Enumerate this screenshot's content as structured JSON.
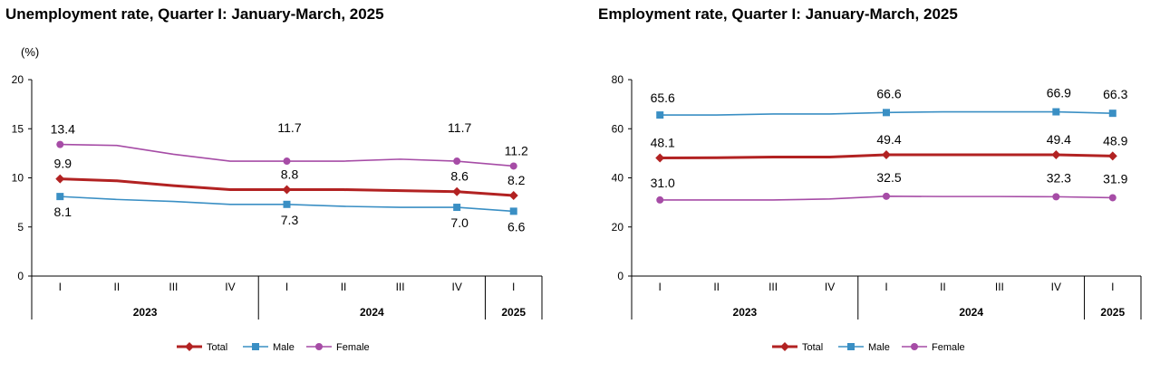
{
  "chart_data": [
    {
      "type": "line",
      "title": "Unemployment rate, Quarter I: January-March, 2025",
      "ylabel": "(%)",
      "ylim": [
        0,
        20
      ],
      "yticks": [
        0,
        5,
        10,
        15,
        20
      ],
      "categories": [
        "I",
        "II",
        "III",
        "IV",
        "I",
        "II",
        "III",
        "IV",
        "I"
      ],
      "years": [
        {
          "label": "2023",
          "span": 4
        },
        {
          "label": "2024",
          "span": 4
        },
        {
          "label": "2025",
          "span": 1
        }
      ],
      "series": [
        {
          "name": "Total",
          "color": "#B22222",
          "values": [
            9.9,
            9.7,
            9.2,
            8.8,
            8.8,
            8.8,
            8.7,
            8.6,
            8.2
          ],
          "labels": {
            "0": "9.9",
            "4": "8.8",
            "7": "8.6",
            "8": "8.2"
          }
        },
        {
          "name": "Male",
          "color": "#3A8FC4",
          "values": [
            8.1,
            7.8,
            7.6,
            7.3,
            7.3,
            7.1,
            7.0,
            7.0,
            6.6
          ],
          "labels": {
            "0": "8.1",
            "4": "7.3",
            "7": "7.0",
            "8": "6.6"
          }
        },
        {
          "name": "Female",
          "color": "#A64CA6",
          "values": [
            13.4,
            13.3,
            12.4,
            11.7,
            11.7,
            11.7,
            11.9,
            11.7,
            11.2
          ],
          "labels": {
            "0": "13.4",
            "4": "11.7",
            "7": "11.7",
            "8": "11.2"
          }
        }
      ],
      "legend": "bottom",
      "grid": false
    },
    {
      "type": "line",
      "title": "Employment rate, Quarter I: January-March, 2025",
      "ylabel": "",
      "ylim": [
        0,
        80
      ],
      "yticks": [
        0,
        20,
        40,
        60,
        80
      ],
      "categories": [
        "I",
        "II",
        "III",
        "IV",
        "I",
        "II",
        "III",
        "IV",
        "I"
      ],
      "years": [
        {
          "label": "2023",
          "span": 4
        },
        {
          "label": "2024",
          "span": 4
        },
        {
          "label": "2025",
          "span": 1
        }
      ],
      "series": [
        {
          "name": "Total",
          "color": "#B22222",
          "values": [
            48.1,
            48.2,
            48.5,
            48.5,
            49.4,
            49.4,
            49.4,
            49.4,
            48.9
          ],
          "labels": {
            "0": "48.1",
            "4": "49.4",
            "7": "49.4",
            "8": "48.9"
          }
        },
        {
          "name": "Male",
          "color": "#3A8FC4",
          "values": [
            65.6,
            65.6,
            66.0,
            66.0,
            66.6,
            66.9,
            66.9,
            66.9,
            66.3
          ],
          "labels": {
            "0": "65.6",
            "4": "66.6",
            "7": "66.9",
            "8": "66.3"
          }
        },
        {
          "name": "Female",
          "color": "#A64CA6",
          "values": [
            31.0,
            31.0,
            31.0,
            31.4,
            32.5,
            32.4,
            32.4,
            32.3,
            31.9
          ],
          "labels": {
            "0": "31.0",
            "4": "32.5",
            "7": "32.3",
            "8": "31.9"
          }
        }
      ],
      "legend": "bottom",
      "grid": false
    }
  ]
}
